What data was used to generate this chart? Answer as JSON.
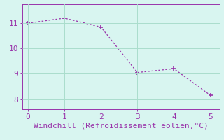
{
  "x": [
    0,
    1,
    2,
    3,
    4,
    5
  ],
  "y": [
    11.0,
    11.2,
    10.85,
    9.05,
    9.2,
    8.15
  ],
  "line_color": "#9933AA",
  "marker_color": "#9933AA",
  "bg_color": "#D8F5F0",
  "grid_color": "#AADDCC",
  "xlabel": "Windchill (Refroidissement éolien,°C)",
  "xlabel_color": "#9933AA",
  "xlim": [
    -0.15,
    5.25
  ],
  "ylim": [
    7.6,
    11.75
  ],
  "xticks": [
    0,
    1,
    2,
    3,
    4,
    5
  ],
  "yticks": [
    8,
    9,
    10,
    11
  ],
  "tick_color": "#9933AA",
  "spine_color": "#9933AA",
  "tick_font_size": 8,
  "xlabel_font_size": 8
}
